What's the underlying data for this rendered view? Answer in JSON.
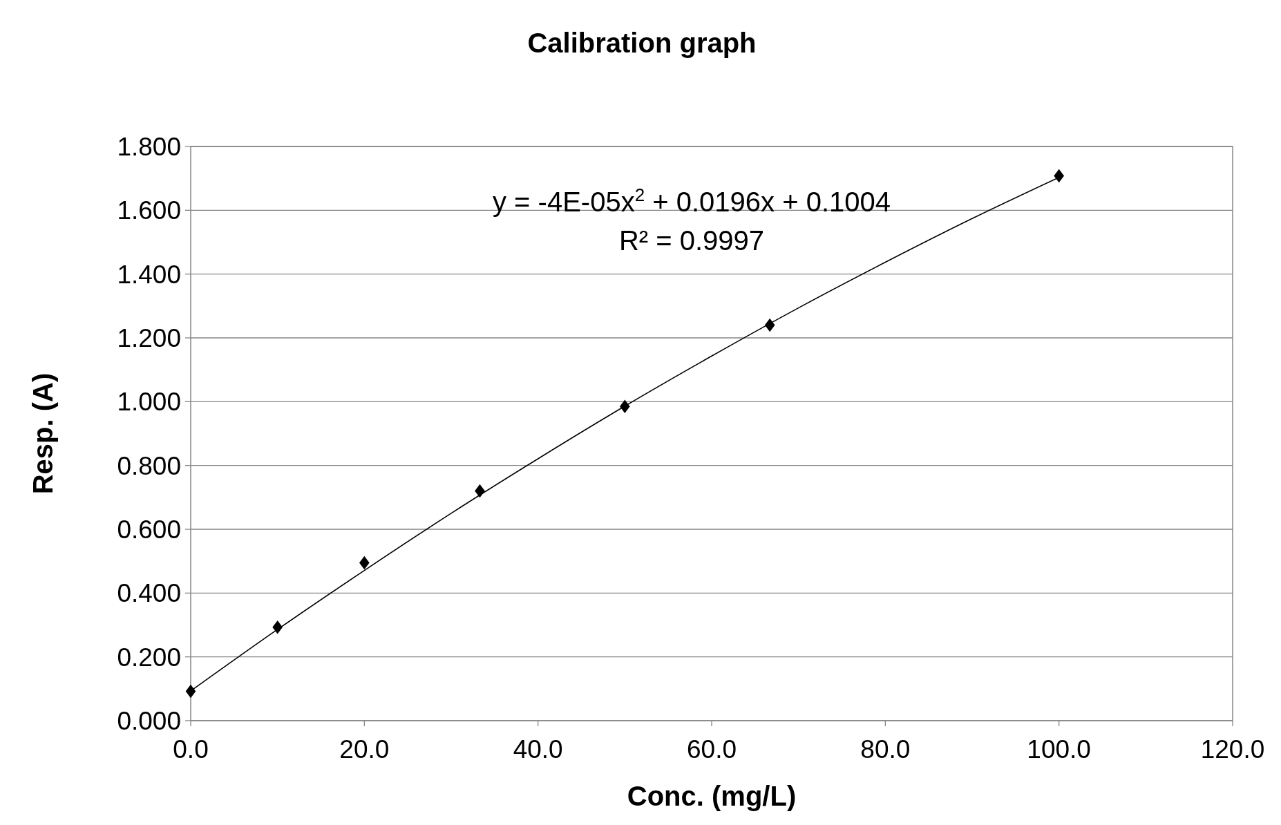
{
  "chart_data": {
    "type": "scatter",
    "title": "Calibration graph",
    "xlabel": "Conc. (mg/L)",
    "ylabel": "Resp. (A)",
    "annotations": [
      "y = -4E-05x$^{2}$ + 0.0196x + 0.1004",
      "R² = 0.9997"
    ],
    "x": [
      0,
      10,
      20,
      33.3,
      50,
      66.7,
      100
    ],
    "series": [
      {
        "color": "#000000",
        "marker": "diamond",
        "values": [
          0.092,
          0.293,
          0.495,
          0.72,
          0.985,
          1.24,
          1.708
        ]
      },
      {
        "type": "line",
        "color": "#000000",
        "marker": "none",
        "x": [
          0,
          10,
          20,
          30,
          40,
          50,
          60,
          70,
          80,
          90,
          100
        ],
        "values": [
          0.093,
          0.286,
          0.471,
          0.65,
          0.821,
          0.986,
          1.143,
          1.294,
          1.437,
          1.574,
          1.703
        ]
      }
    ],
    "xlim": [
      0,
      120
    ],
    "xticks": [
      {
        "value": 0,
        "label": "0.0"
      },
      {
        "value": 20,
        "label": "20.0"
      },
      {
        "value": 40,
        "label": "40.0"
      },
      {
        "value": 60,
        "label": "60.0"
      },
      {
        "value": 80,
        "label": "80.0"
      },
      {
        "value": 100,
        "label": "100.0"
      },
      {
        "value": 120,
        "label": "120.0"
      }
    ],
    "ylim": [
      0,
      1.8
    ],
    "yticks": [
      {
        "value": 0,
        "label": "0.000"
      },
      {
        "value": 0.2,
        "label": "0.200"
      },
      {
        "value": 0.4,
        "label": "0.400"
      },
      {
        "value": 0.6,
        "label": "0.600"
      },
      {
        "value": 0.8,
        "label": "0.800"
      },
      {
        "value": 1,
        "label": "1.000"
      },
      {
        "value": 1.2,
        "label": "1.200"
      },
      {
        "value": 1.4,
        "label": "1.400"
      },
      {
        "value": 1.6,
        "label": "1.600"
      },
      {
        "value": 1.8,
        "label": "1.800"
      }
    ],
    "grid": "y"
  }
}
